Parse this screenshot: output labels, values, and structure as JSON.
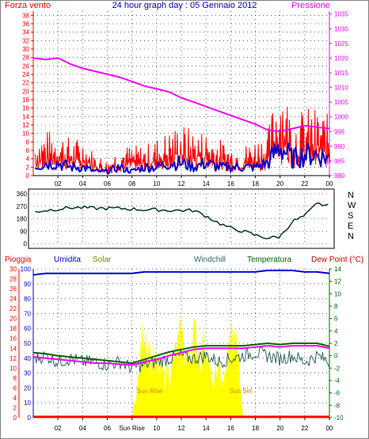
{
  "colors": {
    "wind": "#ff0000",
    "gust": "#0000cc",
    "pressure": "#ff00ff",
    "direction": "#003333",
    "rain": "#ff0000",
    "humidity": "#0000cc",
    "solar": "#ffff00",
    "windchill": "#336666",
    "temperature": "#006600",
    "dewpoint": "#ff00ff",
    "grid": "#000000",
    "frame": "#808080"
  },
  "chart_data": [
    {
      "type": "line",
      "title": "24 hour graph day : 05 Gennaio 2012",
      "left_label": "Forza vento",
      "right_label": "Pressione",
      "left_ticks": [
        "0",
        "2",
        "4",
        "6",
        "8",
        "10",
        "12",
        "14",
        "16",
        "18",
        "20",
        "22",
        "24",
        "26",
        "28",
        "30",
        "32",
        "34",
        "36",
        "38"
      ],
      "right_ticks": [
        "980",
        "985",
        "990",
        "995",
        "1000",
        "1005",
        "1010",
        "1015",
        "1020",
        "1025",
        "1030",
        "1035"
      ],
      "x_ticks": [
        "02",
        "04",
        "06",
        "08",
        "10",
        "12",
        "14",
        "16",
        "18",
        "20",
        "22",
        "00"
      ],
      "ylim_left": [
        0,
        39
      ],
      "ylim_right": [
        980,
        1036
      ],
      "xlim": [
        0,
        24
      ],
      "series": [
        {
          "name": "Forza vento",
          "axis": "left",
          "x": [
            0,
            1,
            2,
            3,
            4,
            5,
            6,
            7,
            8,
            9,
            10,
            11,
            12,
            13,
            14,
            15,
            16,
            17,
            18,
            19,
            20,
            21,
            22,
            23,
            24
          ],
          "values": [
            5,
            6,
            6,
            5,
            5,
            3,
            2,
            4,
            4,
            4,
            5,
            6,
            7,
            6,
            6,
            5,
            4,
            4,
            5,
            6,
            14,
            8,
            9,
            9,
            8
          ]
        },
        {
          "name": "",
          "axis": "left",
          "x": [
            0,
            1,
            2,
            3,
            4,
            5,
            6,
            7,
            8,
            9,
            10,
            11,
            12,
            13,
            14,
            15,
            16,
            17,
            18,
            19,
            20,
            21,
            22,
            23,
            24
          ],
          "values": [
            2,
            3,
            3,
            2,
            2,
            1,
            1,
            2,
            1,
            2,
            2,
            3,
            3,
            2,
            3,
            2,
            2,
            2,
            2,
            3,
            7,
            4,
            5,
            5,
            4
          ]
        },
        {
          "name": "Pressione",
          "axis": "right",
          "x": [
            0,
            1,
            2,
            3,
            4,
            5,
            6,
            7,
            8,
            9,
            10,
            11,
            12,
            13,
            14,
            15,
            16,
            17,
            18,
            19,
            20,
            21,
            22,
            23,
            24
          ],
          "values": [
            1020.0,
            1019.5,
            1020.0,
            1018.0,
            1016.5,
            1015.5,
            1014.5,
            1013.5,
            1012.0,
            1010.5,
            1009.5,
            1008.5,
            1006.5,
            1005.0,
            1003.5,
            1002.0,
            1000.5,
            999.0,
            997.5,
            995.5,
            995.0,
            996.0,
            997.0,
            996.5,
            996.0
          ]
        }
      ]
    },
    {
      "type": "line",
      "title": "",
      "left_ticks": [
        "0",
        "90",
        "180",
        "270",
        "360"
      ],
      "right_letters": [
        "N",
        "W",
        "S",
        "E",
        "N"
      ],
      "x_ticks": [],
      "ylim": [
        0,
        360
      ],
      "xlim": [
        0,
        24
      ],
      "series": [
        {
          "name": "",
          "x": [
            0,
            1,
            2,
            3,
            4,
            5,
            6,
            7,
            8,
            9,
            10,
            11,
            12,
            13,
            14,
            15,
            16,
            17,
            18,
            19,
            20,
            21,
            22,
            23,
            24
          ],
          "values": [
            230,
            240,
            250,
            260,
            260,
            255,
            255,
            255,
            250,
            245,
            245,
            240,
            240,
            240,
            200,
            150,
            110,
            90,
            60,
            40,
            50,
            160,
            200,
            290,
            270
          ]
        }
      ]
    },
    {
      "type": "line",
      "title": "",
      "legend": [
        "Pioggia",
        "Umidita",
        "Solar",
        "Windchill",
        "Temperatura",
        "Dew Point (°C)"
      ],
      "left_ticks": [
        "0",
        "10",
        "20",
        "30",
        "40",
        "50",
        "60",
        "70",
        "80",
        "90",
        "100"
      ],
      "left2_ticks": [
        "0",
        "2",
        "4",
        "6",
        "8",
        "10",
        "12",
        "14",
        "16",
        "18",
        "20",
        "22",
        "24",
        "26",
        "28",
        "30"
      ],
      "right_ticks": [
        "14",
        "12",
        "10",
        "8",
        "6",
        "4",
        "2",
        "0",
        "-2",
        "-4",
        "-6",
        "-8",
        "-10"
      ],
      "x_ticks": [
        "02",
        "04",
        "06",
        "Sun Rise",
        "10",
        "12",
        "14",
        "16",
        "18",
        "20",
        "22",
        "00"
      ],
      "annotations": [
        "Sun Rise",
        "Sun Set"
      ],
      "xlim": [
        0,
        24
      ],
      "ylim_left": [
        0,
        100
      ],
      "ylim_right": [
        -10,
        14
      ],
      "series": [
        {
          "name": "Umidita",
          "axis": "left",
          "x": [
            0,
            1,
            2,
            3,
            4,
            5,
            6,
            7,
            8,
            9,
            10,
            11,
            12,
            13,
            14,
            15,
            16,
            17,
            18,
            19,
            20,
            21,
            22,
            23,
            24
          ],
          "values": [
            96,
            97,
            97,
            97,
            97,
            97,
            97,
            97,
            97,
            98,
            98,
            98,
            98,
            98,
            98,
            98,
            98,
            98,
            98,
            99,
            99,
            99,
            98,
            98,
            97
          ]
        },
        {
          "name": "Solar",
          "axis": "left",
          "x": [
            8,
            8.5,
            9,
            9.5,
            10,
            10.5,
            11,
            11.5,
            12,
            12.5,
            13,
            13.5,
            14,
            14.5,
            15,
            15.5,
            16,
            16.5,
            17
          ],
          "values": [
            0,
            25,
            70,
            40,
            38,
            30,
            32,
            45,
            60,
            40,
            62,
            45,
            58,
            20,
            35,
            25,
            60,
            50,
            0
          ]
        },
        {
          "name": "Windchill",
          "axis": "right",
          "x": [
            0,
            1,
            2,
            3,
            4,
            5,
            6,
            7,
            8,
            9,
            10,
            11,
            12,
            13,
            14,
            15,
            16,
            17,
            18,
            19,
            20,
            21,
            22,
            23,
            24
          ],
          "values": [
            -0.5,
            0,
            -1,
            -0.5,
            -1,
            -1,
            -1.5,
            -1,
            -2,
            -1.5,
            -1,
            -0.5,
            0,
            -0.5,
            0,
            -1,
            -0.5,
            0,
            0.5,
            0,
            -0.5,
            0,
            -1,
            0,
            -1
          ]
        },
        {
          "name": "Temperatura",
          "axis": "right",
          "x": [
            0,
            1,
            2,
            3,
            4,
            5,
            6,
            7,
            8,
            9,
            10,
            11,
            12,
            13,
            14,
            15,
            16,
            17,
            18,
            19,
            20,
            21,
            22,
            23,
            24
          ],
          "values": [
            0.5,
            0.3,
            0,
            -0.2,
            -0.4,
            -0.6,
            -0.8,
            -1,
            -1.2,
            -0.6,
            0,
            0.6,
            1,
            1.4,
            1.6,
            1.6,
            1.6,
            1.6,
            1.8,
            2,
            1.8,
            2,
            2,
            2,
            1.5
          ]
        },
        {
          "name": "Dew Point (°C)",
          "axis": "right",
          "x": [
            0,
            1,
            2,
            3,
            4,
            5,
            6,
            7,
            8,
            9,
            10,
            11,
            12,
            13,
            14,
            15,
            16,
            17,
            18,
            19,
            20,
            21,
            22,
            23,
            24
          ],
          "values": [
            -0.2,
            -0.4,
            -0.6,
            -0.8,
            -1,
            -1.2,
            -1.2,
            -1.4,
            -1.5,
            -1,
            -0.6,
            0,
            0.5,
            1,
            1.2,
            1.2,
            1.2,
            1.2,
            1.4,
            1.6,
            1.4,
            1.6,
            1.6,
            1.6,
            1.2
          ]
        },
        {
          "name": "Pioggia",
          "axis": "left2",
          "x": [
            0,
            24
          ],
          "values": [
            0,
            0
          ]
        }
      ]
    }
  ]
}
